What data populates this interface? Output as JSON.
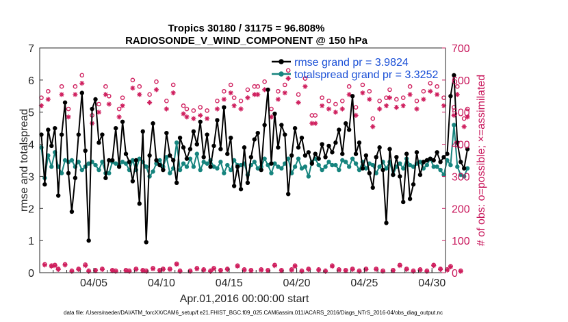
{
  "chart_data": {
    "type": "line",
    "title_line1": "Tropics 30180 / 31175 = 96.808%",
    "title_line2": "RADIOSONDE_V_WIND_COMPONENT @ 150 hPa",
    "xlabel": "Apr.01,2016 00:00:00 start",
    "ylabel_left": "rmse and totalspread",
    "ylabel_right": "# of obs: o=possible; ×=assimilated",
    "x_range_days": [
      1,
      31
    ],
    "ylim_left": [
      0,
      7
    ],
    "ylim_right": [
      0,
      700
    ],
    "yticks_left": [
      "0",
      "1",
      "2",
      "3",
      "4",
      "5",
      "6",
      "7"
    ],
    "yticks_right": [
      "0",
      "100",
      "200",
      "300",
      "400",
      "500",
      "600",
      "700"
    ],
    "xticks": [
      {
        "day": 5,
        "label": "04/05"
      },
      {
        "day": 10,
        "label": "04/10"
      },
      {
        "day": 15,
        "label": "04/15"
      },
      {
        "day": 20,
        "label": "04/20"
      },
      {
        "day": 25,
        "label": "04/25"
      },
      {
        "day": 30,
        "label": "04/30"
      }
    ],
    "legend": [
      {
        "label": "rmse grand pr = 3.9824",
        "color": "#000000"
      },
      {
        "label": "totalspread grand pr = 3.3252",
        "color": "#16847e"
      }
    ],
    "colors": {
      "rmse": "#000000",
      "spread": "#16847e",
      "obs": "#cf1f5e",
      "legend_text": "#1a4fd6",
      "right_axis": "#c8155a"
    },
    "step_days": 0.25,
    "series": [
      {
        "name": "rmse",
        "values": [
          4.3,
          2.75,
          4.45,
          3.95,
          4.5,
          2.4,
          4.3,
          5.3,
          3.1,
          1.9,
          2.95,
          4.3,
          5.6,
          3.8,
          1.0,
          5.1,
          5.4,
          4.05,
          4.3,
          2.95,
          3.5,
          3.5,
          4.5,
          3.3,
          4.7,
          3.7,
          3.45,
          2.85,
          3.5,
          2.15,
          4.4,
          0.95,
          3.65,
          4.65,
          3.5,
          3.35,
          3.2,
          4.35,
          3.65,
          3.5,
          2.8,
          4.2,
          3.9,
          3.55,
          3.85,
          4.4,
          4.0,
          4.7,
          3.6,
          4.3,
          3.3,
          3.95,
          4.75,
          3.85,
          5.15,
          3.7,
          4.2,
          2.7,
          3.3,
          2.6,
          3.9,
          2.8,
          3.6,
          4.15,
          4.35,
          3.2,
          4.6,
          5.7,
          3.4,
          4.95,
          3.9,
          4.6,
          4.3,
          2.45,
          3.65,
          4.5,
          3.9,
          4.2,
          3.65,
          3.75,
          3.4,
          3.7,
          3.55,
          4.0,
          3.6,
          3.95,
          3.75,
          4.05,
          4.45,
          3.7,
          4.65,
          4.45,
          5.5,
          3.7,
          4.05,
          3.25,
          3.65,
          3.1,
          2.65,
          3.6,
          3.9,
          3.2,
          1.55,
          3.85,
          3.05,
          3.6,
          3.0,
          2.2,
          3.7,
          2.3,
          2.75,
          3.75,
          3.05,
          3.45,
          3.5,
          3.55,
          3.5,
          3.75,
          3.45,
          3.6,
          3.7,
          5.5,
          6.15,
          4.05,
          3.45,
          3.25,
          3.85
        ]
      },
      {
        "name": "totalspread",
        "values": [
          3.9,
          2.95,
          3.65,
          3.3,
          3.75,
          3.3,
          3.1,
          3.5,
          3.45,
          3.5,
          3.3,
          3.45,
          3.2,
          3.3,
          3.4,
          3.45,
          3.35,
          3.2,
          3.45,
          3.1,
          3.1,
          3.45,
          3.4,
          3.35,
          3.45,
          3.4,
          3.2,
          3.5,
          3.2,
          3.55,
          3.45,
          3.3,
          3.0,
          3.15,
          3.4,
          3.5,
          3.3,
          3.6,
          3.1,
          3.25,
          4.05,
          3.2,
          3.4,
          3.3,
          3.55,
          3.3,
          3.7,
          3.2,
          3.45,
          3.4,
          3.5,
          3.3,
          3.25,
          3.45,
          3.1,
          3.35,
          3.2,
          3.5,
          3.35,
          3.35,
          3.4,
          3.05,
          3.35,
          3.45,
          3.25,
          3.3,
          3.55,
          3.35,
          3.1,
          3.4,
          3.3,
          3.25,
          3.4,
          3.55,
          3.1,
          3.3,
          3.55,
          3.25,
          3.3,
          3.0,
          3.45,
          3.55,
          3.35,
          3.2,
          3.3,
          3.45,
          3.35,
          3.35,
          3.2,
          3.5,
          3.45,
          3.3,
          3.55,
          3.4,
          3.2,
          3.45,
          3.25,
          3.4,
          3.35,
          3.1,
          3.3,
          3.45,
          3.25,
          3.45,
          3.05,
          3.3,
          3.4,
          3.25,
          3.55,
          3.35,
          3.3,
          3.4,
          3.45,
          3.25,
          3.35,
          3.55,
          3.3,
          3.3,
          3.2,
          3.05,
          3.5,
          3.35,
          4.6,
          3.3,
          3.05,
          3.0,
          3.25
        ]
      },
      {
        "name": "obs_possible",
        "values": [
          545,
          26,
          565,
          22,
          24,
          12,
          580,
          26,
          510,
          6,
          580,
          12,
          615,
          25,
          6,
          490,
          8,
          525,
          12,
          580,
          550,
          8,
          6,
          510,
          545,
          8,
          6,
          600,
          12,
          580,
          8,
          6,
          555,
          14,
          595,
          8,
          12,
          535,
          12,
          585,
          28,
          6,
          520,
          510,
          6,
          505,
          14,
          515,
          10,
          505,
          6,
          14,
          535,
          8,
          565,
          12,
          585,
          545,
          22,
          535,
          10,
          570,
          8,
          580,
          580,
          10,
          595,
          8,
          510,
          24,
          565,
          8,
          585,
          630,
          10,
          22,
          555,
          6,
          605,
          12,
          490,
          490,
          10,
          545,
          6,
          535,
          22,
          525,
          10,
          535,
          8,
          580,
          12,
          515,
          6,
          585,
          12,
          565,
          480,
          12,
          535,
          6,
          545,
          570,
          8,
          540,
          24,
          545,
          12,
          580,
          6,
          535,
          10,
          565,
          6,
          590,
          24,
          580,
          12,
          545,
          10,
          20,
          515,
          580,
          6,
          480,
          510
        ]
      },
      {
        "name": "obs_assimilated",
        "values": [
          520,
          24,
          540,
          20,
          22,
          10,
          555,
          24,
          485,
          4,
          555,
          10,
          590,
          22,
          4,
          465,
          6,
          500,
          10,
          555,
          525,
          6,
          4,
          485,
          520,
          6,
          4,
          575,
          10,
          555,
          6,
          4,
          530,
          12,
          570,
          6,
          10,
          510,
          10,
          560,
          26,
          4,
          495,
          485,
          4,
          480,
          12,
          490,
          8,
          480,
          4,
          12,
          510,
          6,
          540,
          10,
          560,
          520,
          20,
          510,
          8,
          545,
          6,
          555,
          555,
          8,
          570,
          6,
          485,
          22,
          540,
          6,
          560,
          605,
          8,
          20,
          530,
          4,
          580,
          10,
          465,
          465,
          8,
          520,
          4,
          510,
          20,
          500,
          8,
          510,
          6,
          555,
          10,
          490,
          4,
          560,
          10,
          540,
          455,
          10,
          510,
          4,
          520,
          545,
          6,
          515,
          22,
          520,
          10,
          555,
          4,
          510,
          8,
          540,
          4,
          565,
          22,
          555,
          10,
          520,
          8,
          18,
          490,
          555,
          4,
          455,
          485
        ]
      }
    ]
  },
  "footer": "data file: /Users/raeder/DAI/ATM_forcXX/CAM6_setup/f.e21.FHIST_BGC.f09_025.CAM6assim.011/ACARS_2016/Diags_NTrS_2016-04/obs_diag_output.nc"
}
